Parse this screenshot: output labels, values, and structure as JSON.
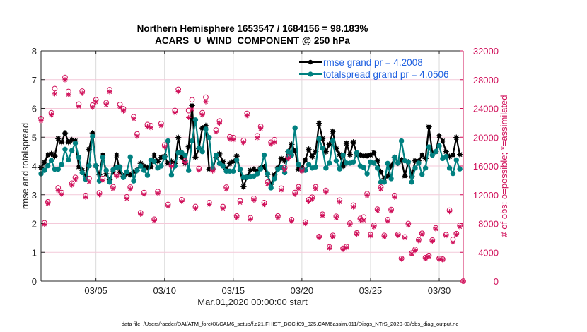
{
  "chart_data": {
    "type": "line",
    "title": [
      "Northern Hemisphere 1653547 / 1684156 = 98.183%",
      "ACARS_U_WIND_COMPONENT @ 250 hPa"
    ],
    "xlabel": "Mar.01,2020 00:00:00 start",
    "ylabel_left": "rmse and totalspread",
    "ylabel_right": "# of obs: o=possible; *=assimilated",
    "x_units": "days since Mar.01,2020 00:00:00",
    "xlim": [
      0,
      30.75
    ],
    "x_ticks": [
      {
        "value": 4,
        "label": "03/05"
      },
      {
        "value": 9,
        "label": "03/10"
      },
      {
        "value": 14,
        "label": "03/15"
      },
      {
        "value": 19,
        "label": "03/20"
      },
      {
        "value": 24,
        "label": "03/25"
      },
      {
        "value": 29,
        "label": "03/30"
      }
    ],
    "ylim_left": [
      0,
      8
    ],
    "yticks_left": [
      0,
      1,
      2,
      3,
      4,
      5,
      6,
      7,
      8
    ],
    "ylim_right": [
      0,
      32000
    ],
    "yticks_right": [
      0,
      4000,
      8000,
      12000,
      16000,
      20000,
      24000,
      28000,
      32000
    ],
    "grid": true,
    "legend": {
      "placement": "top-right",
      "entries": [
        {
          "label": "rmse grand pr = 4.2008",
          "series": "rmse"
        },
        {
          "label": "totalspread grand pr = 4.0506",
          "series": "totalspread"
        }
      ]
    },
    "colors": {
      "rmse": "#000000",
      "totalspread": "#008080",
      "obs": "#d0105a",
      "legend_text": "#1e5fe0"
    },
    "x": [
      0,
      0.25,
      0.5,
      0.75,
      1,
      1.25,
      1.5,
      1.75,
      2,
      2.25,
      2.5,
      2.75,
      3,
      3.25,
      3.5,
      3.75,
      4,
      4.25,
      4.5,
      4.75,
      5,
      5.25,
      5.5,
      5.75,
      6,
      6.25,
      6.5,
      6.75,
      7,
      7.25,
      7.5,
      7.75,
      8,
      8.25,
      8.5,
      8.75,
      9,
      9.25,
      9.5,
      9.75,
      10,
      10.25,
      10.5,
      10.75,
      11,
      11.25,
      11.5,
      11.75,
      12,
      12.25,
      12.5,
      12.75,
      13,
      13.25,
      13.5,
      13.75,
      14,
      14.25,
      14.5,
      14.75,
      15,
      15.25,
      15.5,
      15.75,
      16,
      16.25,
      16.5,
      16.75,
      17,
      17.25,
      17.5,
      17.75,
      18,
      18.25,
      18.5,
      18.75,
      19,
      19.25,
      19.5,
      19.75,
      20,
      20.25,
      20.5,
      20.75,
      21,
      21.25,
      21.5,
      21.75,
      22,
      22.25,
      22.5,
      22.75,
      23,
      23.25,
      23.5,
      23.75,
      24,
      24.25,
      24.5,
      24.75,
      25,
      25.25,
      25.5,
      25.75,
      26,
      26.25,
      26.5,
      26.75,
      27,
      27.25,
      27.5,
      27.75,
      28,
      28.25,
      28.5,
      28.75,
      29,
      29.25,
      29.5,
      29.75,
      30,
      30.25,
      30.5,
      30.75
    ],
    "series": [
      {
        "name": "rmse",
        "axis": "left",
        "style": "line-marker",
        "values": [
          3.94,
          4.13,
          4.38,
          4.42,
          4.34,
          4.95,
          4.83,
          5.15,
          4.83,
          4.91,
          4.87,
          3.97,
          3.85,
          3.64,
          4.58,
          5.15,
          4.01,
          3.69,
          4.38,
          3.73,
          3.52,
          3.8,
          4.38,
          3.77,
          3.65,
          3.73,
          3.7,
          3.8,
          3.85,
          4.09,
          4.0,
          3.95,
          3.97,
          4.38,
          4.16,
          4.3,
          4.34,
          4.09,
          4.16,
          4.09,
          4.99,
          4.3,
          4.09,
          4.67,
          6.1,
          4.31,
          4.6,
          5.32,
          5.4,
          3.89,
          3.9,
          4.3,
          4.42,
          4.16,
          3.89,
          4.09,
          4.16,
          4.34,
          3.86,
          3.28,
          3.63,
          3.85,
          3.89,
          3.83,
          3.93,
          3.97,
          3.7,
          3.36,
          3.69,
          3.93,
          4.26,
          4.18,
          4.5,
          4.75,
          4.53,
          3.89,
          3.93,
          4.21,
          4.58,
          4.33,
          4.5,
          5.48,
          4.95,
          4.5,
          4.75,
          5.2,
          4.6,
          4.4,
          4.0,
          4.79,
          4.4,
          4.83,
          4.42,
          4.38,
          4.36,
          4.36,
          4.38,
          4.46,
          4.18,
          3.8,
          3.56,
          3.65,
          4.0,
          4.3,
          4.1,
          4.21,
          3.65,
          4.14,
          3.65,
          4.18,
          4.18,
          4.38,
          4.26,
          5.36,
          4.46,
          4.5,
          5.05,
          4.87,
          4.5,
          4.33,
          4.38,
          4.99,
          4.4,
          null
        ]
      },
      {
        "name": "totalspread",
        "axis": "left",
        "style": "line-marker",
        "values": [
          3.73,
          3.85,
          4.01,
          4.19,
          3.89,
          3.89,
          4.05,
          4.58,
          4.21,
          4.54,
          4.79,
          4.3,
          3.77,
          3.54,
          4.01,
          5.03,
          4.01,
          3.48,
          4.3,
          3.85,
          3.44,
          3.87,
          3.95,
          3.97,
          3.6,
          3.8,
          4.31,
          3.48,
          3.85,
          4.0,
          3.85,
          3.68,
          4.21,
          4.16,
          3.93,
          4.0,
          4.3,
          4.87,
          3.69,
          4.0,
          4.46,
          4.46,
          4.38,
          3.85,
          4.87,
          5.6,
          4.62,
          4.5,
          5.28,
          4.99,
          3.93,
          4.38,
          4.09,
          4.0,
          3.82,
          3.82,
          3.82,
          4.21,
          3.89,
          3.6,
          3.6,
          3.62,
          3.65,
          3.73,
          3.9,
          4.38,
          3.73,
          3.24,
          3.56,
          3.89,
          3.95,
          3.77,
          4.5,
          4.38,
          5.32,
          4.05,
          3.85,
          3.85,
          4.05,
          3.93,
          3.97,
          4.95,
          4.62,
          3.93,
          4.1,
          4.87,
          4.18,
          3.9,
          4.38,
          4.1,
          4.1,
          4.14,
          4.46,
          4.0,
          3.95,
          3.73,
          4.14,
          4.1,
          3.93,
          3.44,
          3.44,
          4.09,
          3.56,
          4.3,
          4.1,
          4.87,
          4.18,
          4.14,
          3.44,
          3.93,
          4.1,
          3.71,
          3.93,
          4.66,
          4.38,
          4.5,
          4.7,
          4.26,
          4.33,
          3.93,
          3.74,
          4.21,
          3.9,
          null
        ]
      },
      {
        "name": "possible",
        "axis": "right",
        "style": "marker-o",
        "values": [
          22600,
          8100,
          11000,
          23400,
          26750,
          12950,
          12300,
          28300,
          26350,
          13600,
          14400,
          24600,
          26400,
          11900,
          14250,
          24450,
          25200,
          12250,
          14250,
          24800,
          26600,
          13100,
          14850,
          24550,
          23950,
          11700,
          13050,
          22850,
          20450,
          9500,
          12300,
          21750,
          21600,
          8600,
          12450,
          21900,
          18900,
          10650,
          16200,
          23700,
          26650,
          11300,
          16700,
          23700,
          25200,
          10350,
          15650,
          23400,
          25550,
          10900,
          15550,
          21000,
          22250,
          10350,
          13050,
          20050,
          19950,
          9050,
          11150,
          19550,
          23300,
          8800,
          11500,
          20200,
          21500,
          10900,
          13750,
          19300,
          19650,
          9050,
          12900,
          15750,
          17250,
          8550,
          12300,
          13100,
          15550,
          8200,
          11300,
          11650,
          13100,
          6200,
          9300,
          12600,
          4750,
          6350,
          9000,
          11250,
          4550,
          4800,
          8050,
          10550,
          6700,
          8700,
          8900,
          12150,
          6450,
          7750,
          10000,
          13050,
          6350,
          8550,
          9950,
          11900,
          6500,
          3150,
          6150,
          8000,
          3900,
          4400,
          5750,
          6650,
          3250,
          3550,
          5700,
          7400,
          3150,
          3050,
          6450,
          9850,
          5800,
          6600,
          7750,
          0
        ]
      },
      {
        "name": "assimilated",
        "axis": "right",
        "style": "marker-star",
        "values": [
          22300,
          7900,
          10800,
          23100,
          26030,
          12600,
          12050,
          27990,
          25930,
          13350,
          14150,
          24270,
          26100,
          11650,
          13800,
          24150,
          24900,
          12000,
          14000,
          24500,
          26300,
          12850,
          14600,
          24150,
          23650,
          11450,
          12800,
          22550,
          20150,
          9300,
          12050,
          21450,
          21300,
          8400,
          12200,
          21600,
          18650,
          10400,
          15950,
          23400,
          26350,
          11050,
          16450,
          22730,
          23880,
          10100,
          15400,
          23100,
          24930,
          10650,
          15300,
          20700,
          21950,
          10100,
          12800,
          19750,
          19650,
          8850,
          10900,
          19250,
          23000,
          8600,
          11250,
          19900,
          21200,
          10650,
          13500,
          19050,
          19310,
          8850,
          12650,
          15450,
          17030,
          8350,
          12050,
          12850,
          15300,
          8000,
          11050,
          11400,
          12850,
          6050,
          9100,
          12350,
          4600,
          6200,
          8800,
          11000,
          4400,
          4650,
          7850,
          10300,
          6550,
          8500,
          8450,
          11900,
          6300,
          7550,
          9800,
          12800,
          6200,
          8350,
          9750,
          11650,
          6350,
          3050,
          6000,
          7800,
          3800,
          4250,
          5600,
          6500,
          3150,
          3450,
          5550,
          7250,
          3050,
          2950,
          6300,
          9650,
          5380,
          6450,
          7550,
          0
        ]
      }
    ]
  },
  "footer": "data file: /Users/raeder/DAI/ATM_forcXX/CAM6_setup/f.e21.FHIST_BGC.f09_025.CAM6assim.011/Diags_NTrS_2020-03/obs_diag_output.nc"
}
